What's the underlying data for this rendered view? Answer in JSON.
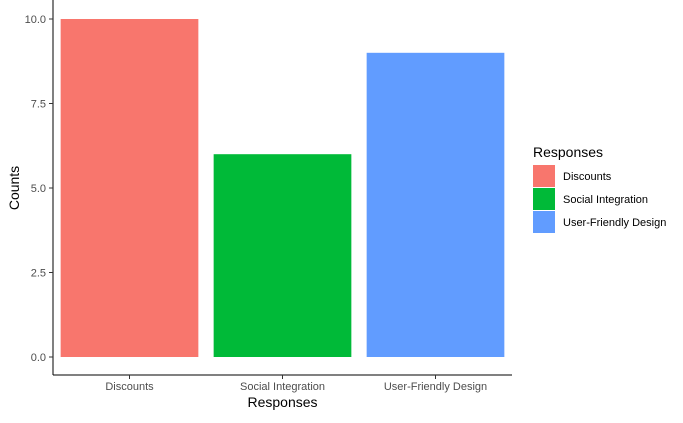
{
  "chart_data": {
    "type": "bar",
    "categories": [
      "Discounts",
      "Social Integration",
      "User-Friendly Design"
    ],
    "values": [
      10,
      6,
      9
    ],
    "colors": [
      "#F8766D",
      "#00BA38",
      "#619CFF"
    ],
    "xlabel": "Responses",
    "ylabel": "Counts",
    "ylim": [
      0,
      10
    ],
    "yticks": [
      0,
      2.5,
      5,
      7.5,
      10
    ],
    "ytick_labels": [
      "0.0",
      "2.5",
      "5.0",
      "7.5",
      "10.0"
    ],
    "grid": false,
    "legend": {
      "title": "Responses",
      "placement": "right",
      "entries": [
        "Discounts",
        "Social Integration",
        "User-Friendly Design"
      ]
    }
  }
}
